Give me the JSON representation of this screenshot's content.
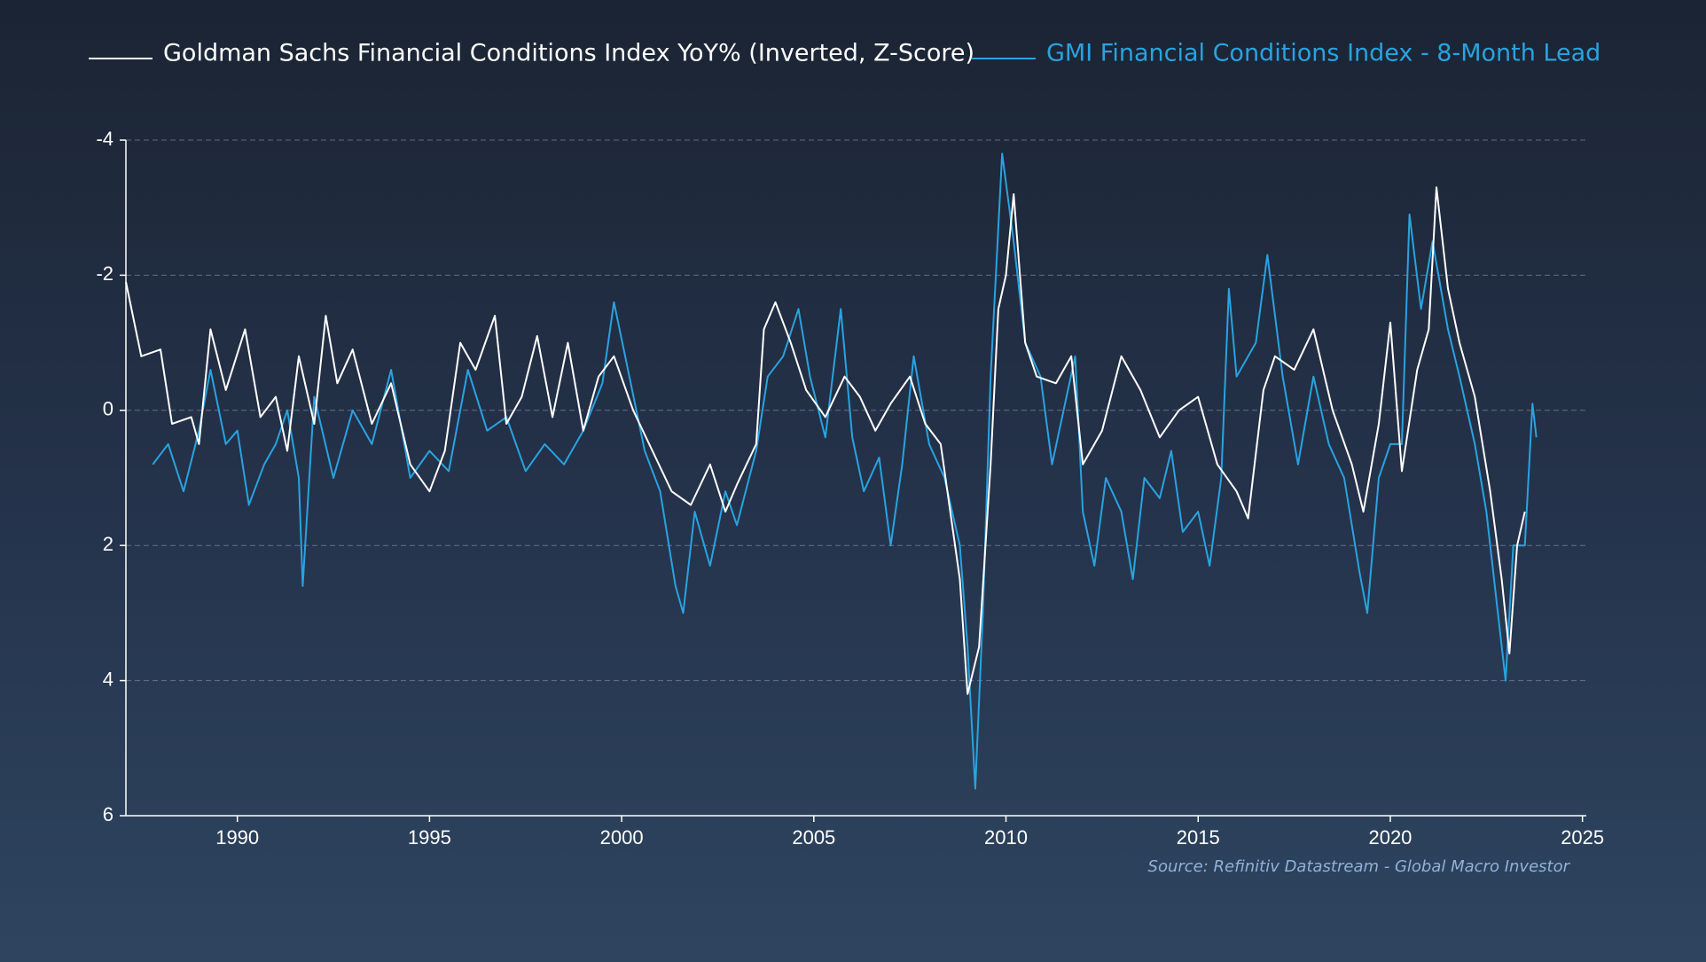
{
  "chart_data": {
    "type": "line",
    "source": "Source: Refinitiv Datastream - Global Macro Investor",
    "xlim": [
      1987.1,
      2025.1
    ],
    "xticks": [
      1990,
      1995,
      2000,
      2005,
      2010,
      2015,
      2020,
      2025
    ],
    "ylim": [
      -4,
      6
    ],
    "yticks": [
      -4,
      -2,
      0,
      2,
      4,
      6
    ],
    "y_inverted": true,
    "grid": true,
    "series": [
      {
        "name": "Goldman Sachs Financial Conditions Index YoY% (Inverted, Z-Score)",
        "color": "#ffffff",
        "x": [
          1987.1,
          1987.5,
          1988.0,
          1988.3,
          1988.8,
          1989.0,
          1989.3,
          1989.7,
          1990.2,
          1990.6,
          1991.0,
          1991.3,
          1991.6,
          1992.0,
          1992.3,
          1992.6,
          1993.0,
          1993.5,
          1994.0,
          1994.5,
          1995.0,
          1995.4,
          1995.8,
          1996.2,
          1996.7,
          1997.0,
          1997.4,
          1997.8,
          1998.2,
          1998.6,
          1999.0,
          1999.4,
          1999.8,
          2000.3,
          2000.8,
          2001.3,
          2001.8,
          2002.3,
          2002.7,
          2003.0,
          2003.5,
          2003.7,
          2004.0,
          2004.4,
          2004.8,
          2005.3,
          2005.8,
          2006.2,
          2006.6,
          2007.0,
          2007.5,
          2007.9,
          2008.3,
          2008.8,
          2009.0,
          2009.3,
          2009.6,
          2009.8,
          2010.0,
          2010.2,
          2010.5,
          2010.8,
          2011.3,
          2011.7,
          2012.0,
          2012.5,
          2013.0,
          2013.5,
          2014.0,
          2014.5,
          2015.0,
          2015.5,
          2016.0,
          2016.3,
          2016.7,
          2017.0,
          2017.5,
          2018.0,
          2018.5,
          2019.0,
          2019.3,
          2019.7,
          2020.0,
          2020.3,
          2020.7,
          2021.0,
          2021.2,
          2021.5,
          2021.8,
          2022.2,
          2022.6,
          2022.9,
          2023.1,
          2023.3,
          2023.5
        ],
        "values": [
          -1.9,
          -0.8,
          -0.9,
          0.2,
          0.1,
          0.5,
          -1.2,
          -0.3,
          -1.2,
          0.1,
          -0.2,
          0.6,
          -0.8,
          0.2,
          -1.4,
          -0.4,
          -0.9,
          0.2,
          -0.4,
          0.8,
          1.2,
          0.6,
          -1.0,
          -0.6,
          -1.4,
          0.2,
          -0.2,
          -1.1,
          0.1,
          -1.0,
          0.3,
          -0.5,
          -0.8,
          0.0,
          0.6,
          1.2,
          1.4,
          0.8,
          1.5,
          1.1,
          0.5,
          -1.2,
          -1.6,
          -1.0,
          -0.3,
          0.1,
          -0.5,
          -0.2,
          0.3,
          -0.1,
          -0.5,
          0.2,
          0.5,
          2.5,
          4.2,
          3.5,
          0.8,
          -1.5,
          -2.0,
          -3.2,
          -1.0,
          -0.5,
          -0.4,
          -0.8,
          0.8,
          0.3,
          -0.8,
          -0.3,
          0.4,
          0.0,
          -0.2,
          0.8,
          1.2,
          1.6,
          -0.3,
          -0.8,
          -0.6,
          -1.2,
          0.0,
          0.8,
          1.5,
          0.2,
          -1.3,
          0.9,
          -0.6,
          -1.2,
          -3.3,
          -1.8,
          -1.0,
          -0.2,
          1.2,
          2.5,
          3.6,
          2.0,
          1.5
        ]
      },
      {
        "name": "GMI Financial Conditions Index - 8-Month Lead",
        "color": "#29a3e0",
        "x": [
          1987.8,
          1988.2,
          1988.6,
          1989.0,
          1989.3,
          1989.7,
          1990.0,
          1990.3,
          1990.7,
          1991.0,
          1991.3,
          1991.6,
          1991.7,
          1992.0,
          1992.5,
          1993.0,
          1993.5,
          1994.0,
          1994.5,
          1995.0,
          1995.5,
          1996.0,
          1996.5,
          1997.0,
          1997.5,
          1998.0,
          1998.5,
          1999.0,
          1999.5,
          1999.8,
          2000.2,
          2000.6,
          2001.0,
          2001.4,
          2001.6,
          2001.9,
          2002.3,
          2002.7,
          2003.0,
          2003.5,
          2003.8,
          2004.2,
          2004.6,
          2004.9,
          2005.3,
          2005.7,
          2006.0,
          2006.3,
          2006.7,
          2007.0,
          2007.3,
          2007.6,
          2008.0,
          2008.4,
          2008.8,
          2009.0,
          2009.2,
          2009.4,
          2009.6,
          2009.9,
          2010.2,
          2010.5,
          2010.9,
          2011.2,
          2011.5,
          2011.8,
          2012.0,
          2012.3,
          2012.6,
          2013.0,
          2013.3,
          2013.6,
          2014.0,
          2014.3,
          2014.6,
          2015.0,
          2015.3,
          2015.6,
          2015.8,
          2016.0,
          2016.5,
          2016.8,
          2017.2,
          2017.6,
          2018.0,
          2018.4,
          2018.8,
          2019.2,
          2019.4,
          2019.7,
          2020.0,
          2020.3,
          2020.5,
          2020.8,
          2021.1,
          2021.5,
          2021.8,
          2022.2,
          2022.5,
          2022.8,
          2023.0,
          2023.2,
          2023.5,
          2023.7,
          2023.8
        ],
        "values": [
          0.8,
          0.5,
          1.2,
          0.3,
          -0.6,
          0.5,
          0.3,
          1.4,
          0.8,
          0.5,
          0.0,
          1.0,
          2.6,
          -0.2,
          1.0,
          0.0,
          0.5,
          -0.6,
          1.0,
          0.6,
          0.9,
          -0.6,
          0.3,
          0.1,
          0.9,
          0.5,
          0.8,
          0.3,
          -0.4,
          -1.6,
          -0.5,
          0.6,
          1.2,
          2.6,
          3.0,
          1.5,
          2.3,
          1.2,
          1.7,
          0.6,
          -0.5,
          -0.8,
          -1.5,
          -0.5,
          0.4,
          -1.5,
          0.4,
          1.2,
          0.7,
          2.0,
          0.8,
          -0.8,
          0.5,
          1.0,
          2.0,
          3.5,
          5.6,
          3.0,
          -0.5,
          -3.8,
          -2.5,
          -1.0,
          -0.5,
          0.8,
          0.0,
          -0.8,
          1.5,
          2.3,
          1.0,
          1.5,
          2.5,
          1.0,
          1.3,
          0.6,
          1.8,
          1.5,
          2.3,
          1.0,
          -1.8,
          -0.5,
          -1.0,
          -2.3,
          -0.5,
          0.8,
          -0.5,
          0.5,
          1.0,
          2.4,
          3.0,
          1.0,
          0.5,
          0.5,
          -2.9,
          -1.5,
          -2.5,
          -1.2,
          -0.5,
          0.5,
          1.5,
          3.0,
          4.0,
          2.0,
          2.0,
          -0.1,
          0.4
        ]
      }
    ]
  }
}
